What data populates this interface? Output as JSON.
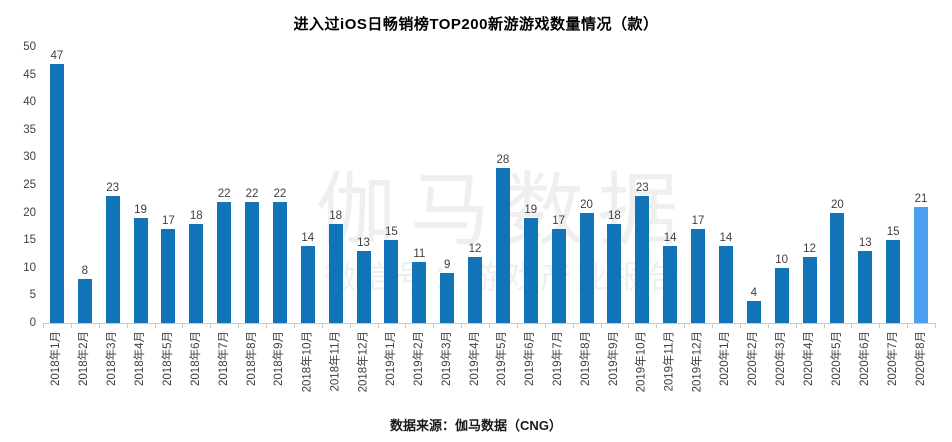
{
  "title": "进入过iOS日畅销榜TOP200新游游戏数量情况（款）",
  "source": "数据来源：伽马数据（CNG）",
  "watermark": {
    "line1": "伽马数据",
    "line2": "微信号：游戏产业报告"
  },
  "colors": {
    "bar": "#1173b8",
    "bar_highlight": "#4d9ff0",
    "axis_line": "#c9c9c9",
    "text": "#404040",
    "watermark": "#efefef"
  },
  "chart_data": {
    "type": "bar",
    "title": "进入过iOS日畅销榜TOP200新游游戏数量情况（款）",
    "categories": [
      "2018年1月",
      "2018年2月",
      "2018年3月",
      "2018年4月",
      "2018年5月",
      "2018年6月",
      "2018年7月",
      "2018年8月",
      "2018年9月",
      "2018年10月",
      "2018年11月",
      "2018年12月",
      "2019年1月",
      "2019年2月",
      "2019年3月",
      "2019年4月",
      "2019年5月",
      "2019年6月",
      "2019年7月",
      "2019年8月",
      "2019年9月",
      "2019年10月",
      "2019年11月",
      "2019年12月",
      "2020年1月",
      "2020年2月",
      "2020年3月",
      "2020年4月",
      "2020年5月",
      "2020年6月",
      "2020年7月",
      "2020年8月"
    ],
    "values": [
      47,
      8,
      23,
      19,
      17,
      18,
      22,
      22,
      22,
      14,
      18,
      13,
      15,
      11,
      9,
      12,
      28,
      19,
      17,
      20,
      18,
      23,
      14,
      17,
      14,
      4,
      10,
      12,
      20,
      13,
      15,
      21
    ],
    "highlight_index": 31,
    "data_labels": true,
    "xlabel": "",
    "ylabel": "",
    "ylim": [
      0,
      50
    ],
    "yticks": [
      0,
      5,
      10,
      15,
      20,
      25,
      30,
      35,
      40,
      45,
      50
    ],
    "grid": false,
    "legend": "none",
    "source": "数据来源：伽马数据（CNG）"
  }
}
